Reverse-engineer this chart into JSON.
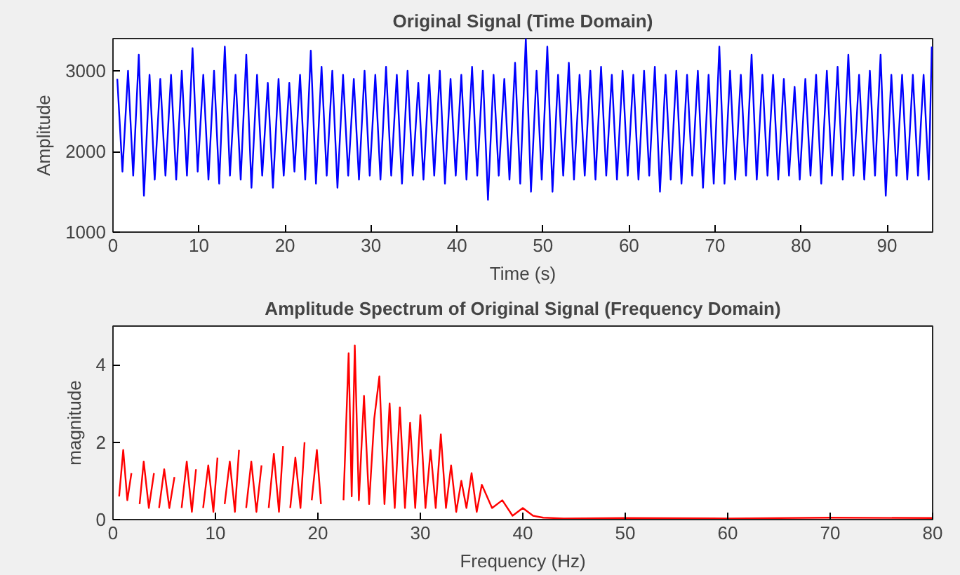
{
  "chart_data": [
    {
      "type": "line",
      "title": "Original Signal (Time Domain)",
      "xlabel": "Time (s)",
      "ylabel": "Amplitude",
      "xlim": [
        0,
        95.3
      ],
      "ylim": [
        1000,
        3400
      ],
      "xticks": [
        0,
        10,
        20,
        30,
        40,
        50,
        60,
        70,
        80,
        90
      ],
      "yticks": [
        1000,
        2000,
        3000
      ],
      "series": [
        {
          "color": "#0000ff",
          "x": [
            0.5,
            1.1,
            1.75,
            2.35,
            3.0,
            3.6,
            4.25,
            4.85,
            5.5,
            6.1,
            6.75,
            7.35,
            8.0,
            8.6,
            9.25,
            9.85,
            10.5,
            11.1,
            11.75,
            12.35,
            13.0,
            13.6,
            14.25,
            14.85,
            15.5,
            16.1,
            16.75,
            17.35,
            18.0,
            18.6,
            19.25,
            19.85,
            20.5,
            21.1,
            21.75,
            22.35,
            23.0,
            23.6,
            24.25,
            24.85,
            25.5,
            26.1,
            26.75,
            27.35,
            28.0,
            28.6,
            29.25,
            29.85,
            30.5,
            31.1,
            31.75,
            32.35,
            33.0,
            33.6,
            34.25,
            34.85,
            35.5,
            36.1,
            36.75,
            37.35,
            38.0,
            38.6,
            39.25,
            39.85,
            40.5,
            41.1,
            41.75,
            42.35,
            43.0,
            43.6,
            44.25,
            44.85,
            45.5,
            46.1,
            46.75,
            47.35,
            48.0,
            48.6,
            49.25,
            49.85,
            50.5,
            51.1,
            51.75,
            52.35,
            53.0,
            53.6,
            54.25,
            54.85,
            55.5,
            56.1,
            56.75,
            57.35,
            58.0,
            58.6,
            59.25,
            59.85,
            60.5,
            61.1,
            61.75,
            62.35,
            63.0,
            63.6,
            64.25,
            64.85,
            65.5,
            66.1,
            66.75,
            67.35,
            68.0,
            68.6,
            69.25,
            69.85,
            70.5,
            71.1,
            71.75,
            72.35,
            73.0,
            73.6,
            74.25,
            74.85,
            75.5,
            76.1,
            76.75,
            77.35,
            78.0,
            78.6,
            79.25,
            79.85,
            80.5,
            81.1,
            81.75,
            82.35,
            83.0,
            83.6,
            84.25,
            84.85,
            85.5,
            86.1,
            86.75,
            87.35,
            88.0,
            88.6,
            89.25,
            89.85,
            90.5,
            91.1,
            91.75,
            92.35,
            93.0,
            93.6,
            94.25,
            94.85,
            95.2
          ],
          "values": [
            2900,
            1750,
            3000,
            1700,
            3200,
            1450,
            2950,
            1650,
            2900,
            1700,
            2950,
            1650,
            3000,
            1700,
            3280,
            1750,
            2950,
            1650,
            3000,
            1600,
            3300,
            1700,
            2950,
            1650,
            3200,
            1550,
            2950,
            1700,
            2850,
            1550,
            2900,
            1700,
            2850,
            1750,
            2950,
            1650,
            3250,
            1600,
            3050,
            1700,
            3000,
            1550,
            2950,
            1700,
            2900,
            1650,
            3000,
            1700,
            2950,
            1650,
            3050,
            1700,
            2950,
            1600,
            3000,
            1700,
            2850,
            1650,
            2950,
            1700,
            3000,
            1600,
            2900,
            1700,
            2950,
            1650,
            3050,
            1700,
            3000,
            1400,
            2950,
            1700,
            2900,
            1650,
            3100,
            1600,
            3400,
            1500,
            3000,
            1650,
            3300,
            1500,
            2950,
            1700,
            3100,
            1650,
            2950,
            1700,
            3000,
            1650,
            3050,
            1700,
            2950,
            1650,
            3000,
            1700,
            2950,
            1650,
            3000,
            1700,
            3050,
            1500,
            2950,
            1650,
            3000,
            1600,
            2950,
            1700,
            3000,
            1550,
            2950,
            1600,
            3300,
            1600,
            3000,
            1650,
            2950,
            1700,
            3200,
            1650,
            2950,
            1700,
            2950,
            1650,
            2900,
            1700,
            2800,
            1650,
            2900,
            1700,
            2950,
            1600,
            3000,
            1700,
            3050,
            1650,
            3200,
            1700,
            2950,
            1650,
            3000,
            1700,
            3200,
            1450,
            2950,
            1700,
            2950,
            1650,
            2950,
            1700,
            2950,
            1650,
            3300
          ]
        }
      ]
    },
    {
      "type": "line",
      "title": "Amplitude Spectrum of Original Signal (Frequency Domain)",
      "xlabel": "Frequency (Hz)",
      "ylabel": "magnitude",
      "xlim": [
        0,
        80
      ],
      "ylim": [
        0,
        5
      ],
      "xticks": [
        0,
        10,
        20,
        30,
        40,
        50,
        60,
        70,
        80
      ],
      "yticks": [
        0,
        2,
        4
      ],
      "series": [
        {
          "color": "#ff0000",
          "x": [
            0.6,
            1.0,
            1.4,
            1.8,
            2.2,
            2.6,
            3.0,
            3.5,
            4.0,
            4.2,
            4.5,
            5.0,
            5.5,
            6.0,
            6.3,
            6.7,
            7.2,
            7.7,
            8.1,
            8.4,
            8.8,
            9.3,
            9.8,
            10.2,
            10.5,
            10.9,
            11.4,
            11.9,
            12.3,
            12.6,
            13.0,
            13.5,
            14.0,
            14.5,
            14.8,
            15.2,
            15.7,
            16.2,
            16.6,
            16.9,
            17.3,
            17.8,
            18.3,
            18.7,
            19.0,
            19.4,
            19.9,
            20.3,
            20.7,
            22.1,
            22.5,
            23.0,
            23.3,
            23.6,
            24.0,
            24.5,
            25.0,
            25.5,
            26.0,
            26.5,
            27.0,
            27.5,
            28.0,
            28.5,
            29.0,
            29.5,
            30.0,
            30.5,
            31.0,
            31.5,
            32.0,
            32.5,
            33.0,
            33.5,
            34.0,
            34.5,
            35.0,
            35.5,
            36.0,
            37.0,
            38.0,
            39.0,
            40.0,
            41.0,
            42.0,
            44.0,
            50.0,
            60.0,
            70.0,
            80.0
          ],
          "values": [
            0.6,
            1.8,
            0.5,
            1.2,
            null,
            0.4,
            1.5,
            0.3,
            1.2,
            null,
            0.3,
            1.3,
            0.3,
            1.1,
            null,
            0.3,
            1.5,
            0.2,
            1.3,
            null,
            0.3,
            1.4,
            0.2,
            1.6,
            null,
            0.4,
            1.5,
            0.2,
            1.8,
            null,
            0.3,
            1.5,
            0.2,
            1.4,
            null,
            0.3,
            1.7,
            0.2,
            1.9,
            null,
            0.3,
            1.6,
            0.3,
            2.0,
            null,
            0.5,
            1.8,
            0.4,
            null,
            null,
            0.5,
            4.3,
            0.6,
            4.5,
            0.5,
            3.2,
            0.4,
            2.6,
            3.7,
            0.4,
            3.0,
            0.3,
            2.9,
            0.3,
            2.5,
            0.3,
            2.7,
            0.3,
            1.8,
            0.3,
            2.2,
            0.3,
            1.4,
            0.2,
            1.0,
            0.3,
            1.2,
            0.2,
            0.9,
            0.3,
            0.5,
            0.1,
            0.3,
            0.1,
            0.05,
            0.03,
            0.04,
            0.03,
            0.05,
            0.04
          ]
        }
      ]
    }
  ]
}
